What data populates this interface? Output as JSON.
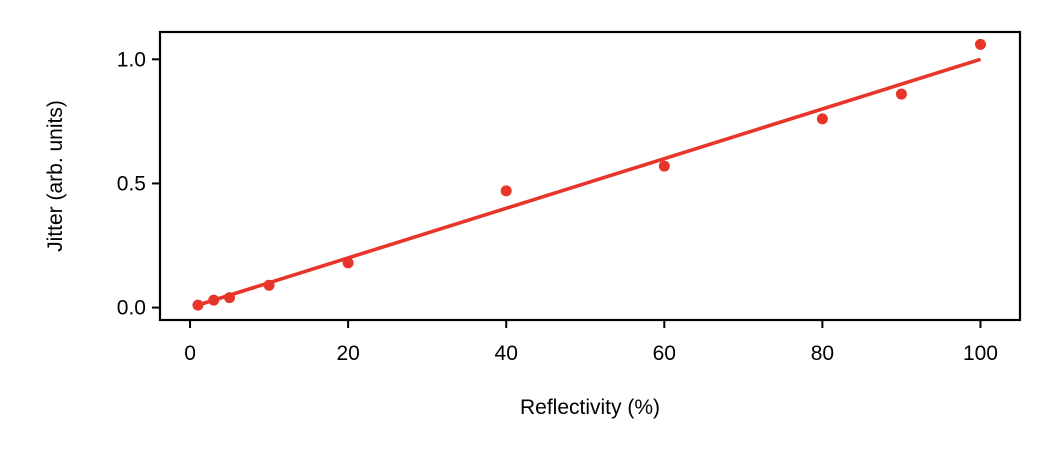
{
  "chart_data": {
    "type": "scatter",
    "title": "",
    "xlabel": "Reflectivity (%)",
    "ylabel": "Jitter (arb. units)",
    "xlim": [
      -3.8,
      105
    ],
    "ylim": [
      -0.05,
      1.11
    ],
    "x_ticks": [
      0,
      20,
      40,
      60,
      80,
      100
    ],
    "x_tick_labels": [
      "0",
      "20",
      "40",
      "60",
      "80",
      "100"
    ],
    "y_ticks": [
      0.0,
      0.5,
      1.0
    ],
    "y_tick_labels": [
      "0.0",
      "0.5",
      "1.0"
    ],
    "grid": false,
    "legend": "none",
    "series": [
      {
        "type": "scatter",
        "color": "#e8352a",
        "x": [
          1,
          3,
          5,
          10,
          20,
          40,
          60,
          80,
          90,
          100
        ],
        "y": [
          0.01,
          0.03,
          0.04,
          0.09,
          0.18,
          0.47,
          0.57,
          0.76,
          0.86,
          1.06
        ]
      },
      {
        "type": "line",
        "color": "#e8352a",
        "x": [
          1,
          100
        ],
        "y": [
          0.01,
          1.0
        ]
      }
    ]
  }
}
